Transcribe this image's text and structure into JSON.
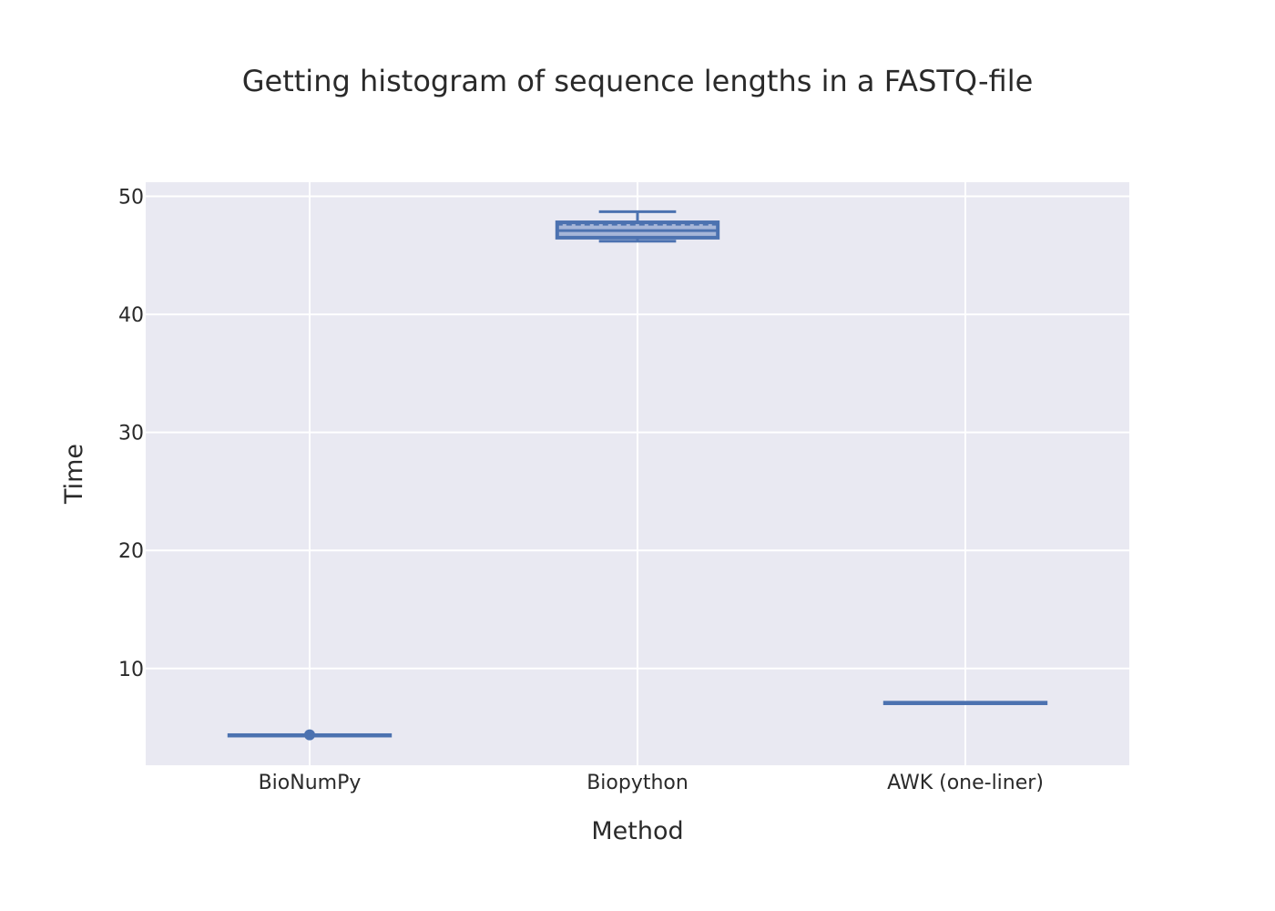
{
  "chart_data": {
    "type": "box",
    "title": "Getting histogram of sequence lengths in a FASTQ-file",
    "xlabel": "Method",
    "ylabel": "Time",
    "ylim": [
      1.8,
      51.2
    ],
    "y_ticks": [
      10,
      20,
      30,
      40,
      50
    ],
    "grid": true,
    "legend": "none",
    "colors": {
      "plot_background": "#e9e9f2",
      "grid": "#ffffff",
      "box_line": "#4c72b0",
      "box_fill": "#a6b6d8"
    },
    "categories": [
      "BioNumPy",
      "Biopython",
      "AWK (one-liner)"
    ],
    "series": [
      {
        "boxes": [
          {
            "category": "BioNumPy",
            "min": 4.35,
            "q1": 4.35,
            "median": 4.35,
            "q3": 4.35,
            "max": 4.35,
            "mean": 4.35,
            "outliers": [
              4.38
            ]
          },
          {
            "category": "Biopython",
            "min": 46.2,
            "q1": 46.5,
            "median": 47.1,
            "q3": 47.8,
            "max": 48.7,
            "mean": 47.6,
            "outliers": []
          },
          {
            "category": "AWK (one-liner)",
            "min": 7.05,
            "q1": 7.05,
            "median": 7.1,
            "q3": 7.1,
            "max": 7.1,
            "mean": 7.1,
            "outliers": []
          }
        ]
      }
    ]
  }
}
